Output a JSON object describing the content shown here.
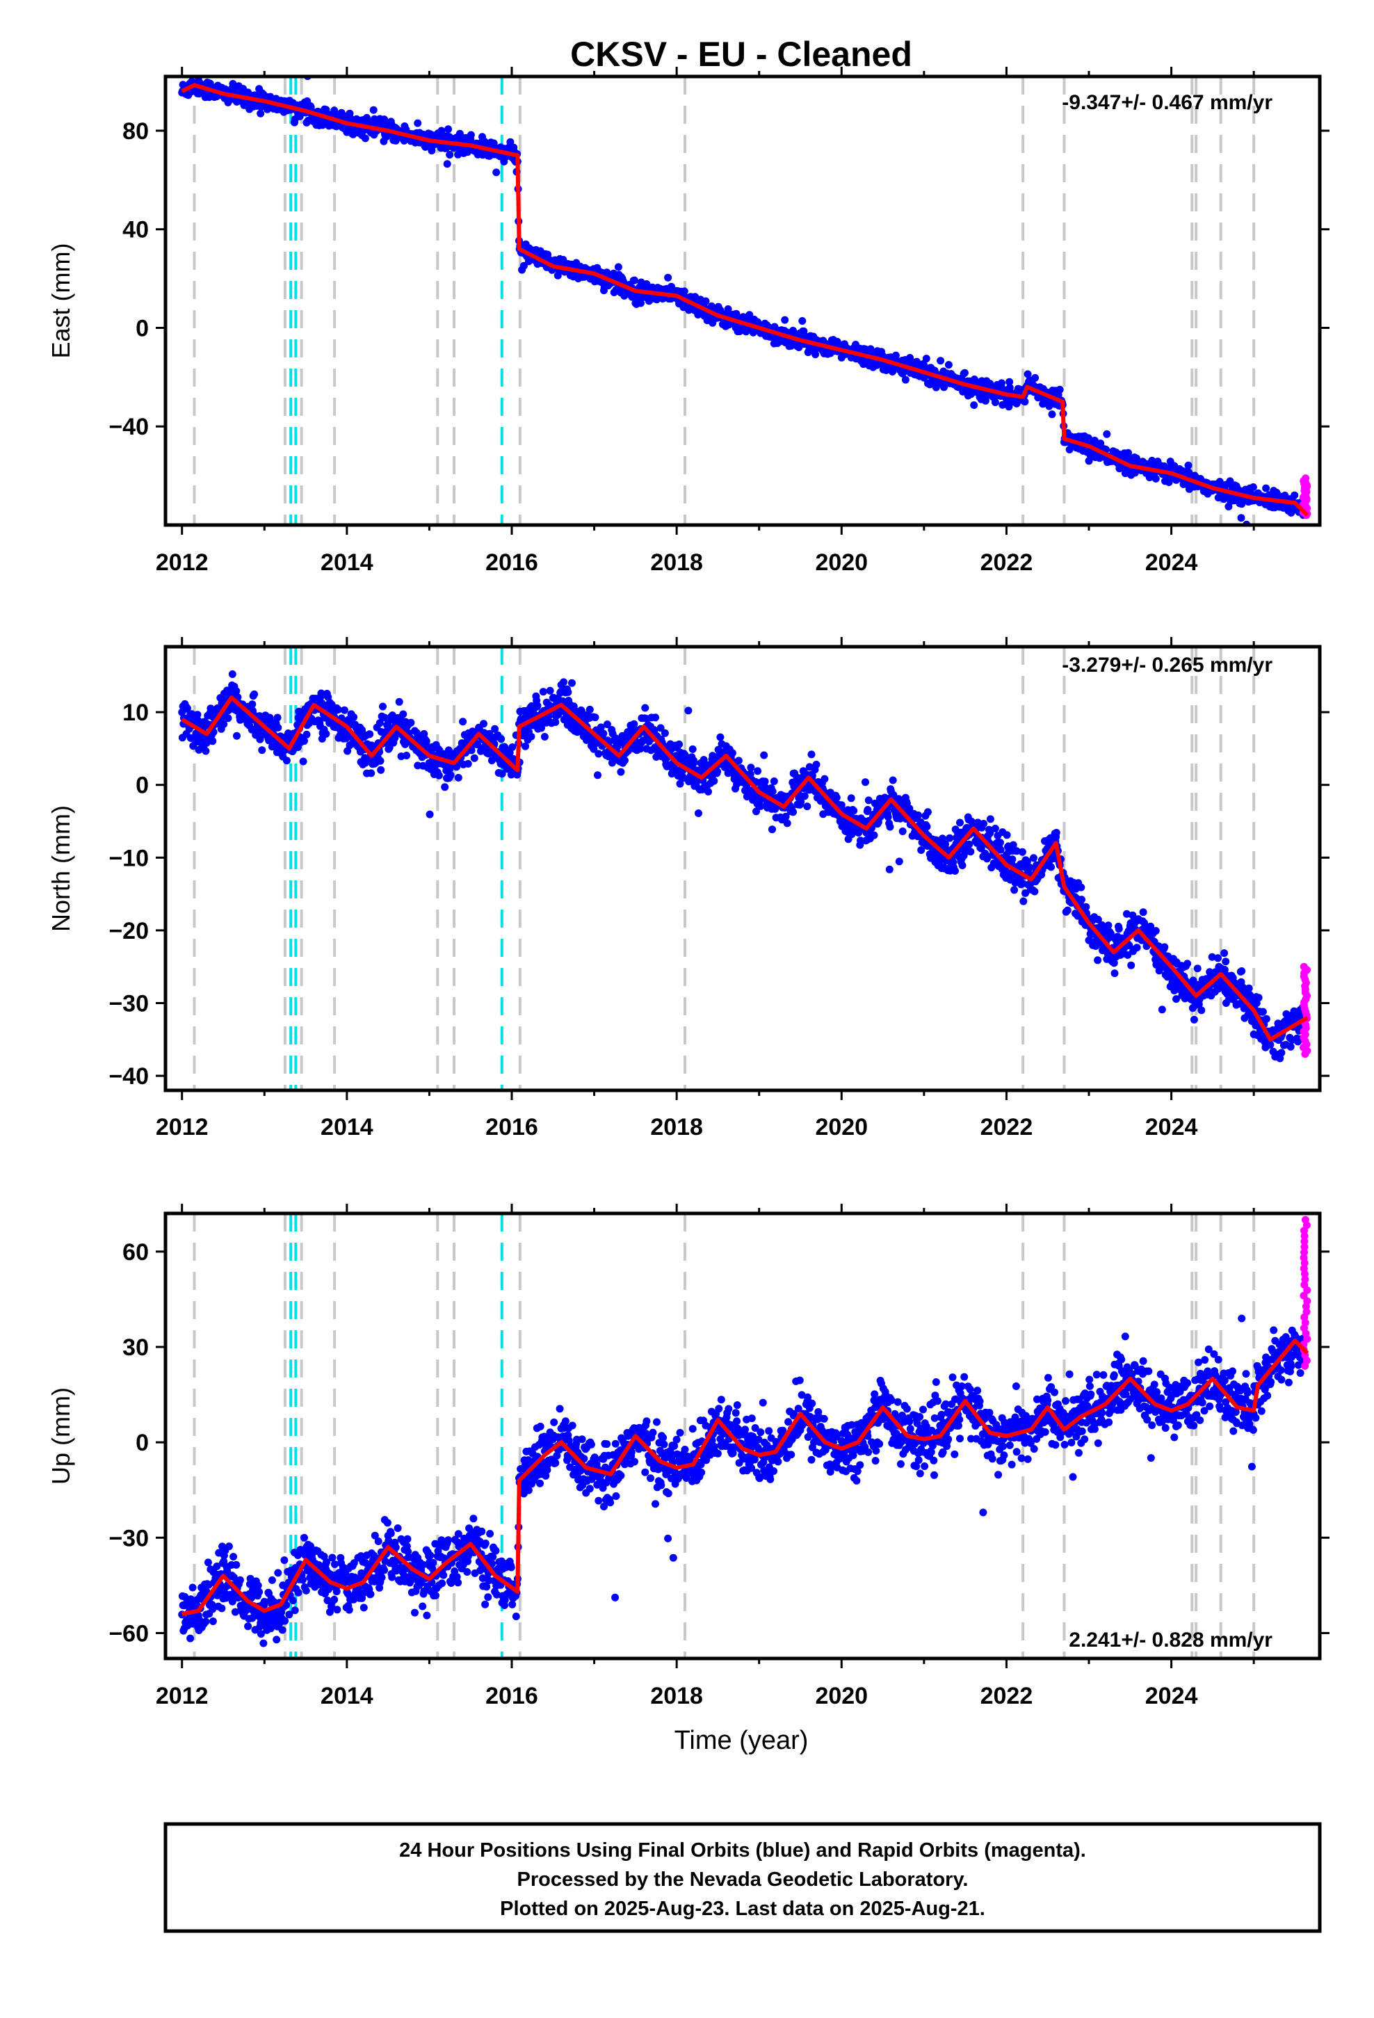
{
  "figure": {
    "title": "CKSV  - EU - Cleaned",
    "xlabel": "Time (year)",
    "footer": [
      "24 Hour Positions Using Final Orbits (blue) and Rapid Orbits (magenta).",
      "Processed by the Nevada Geodetic Laboratory.",
      "Plotted on 2025-Aug-23. Last data on 2025-Aug-21."
    ],
    "colors": {
      "final_orbits": "#0000ff",
      "rapid_orbits": "#ff00ff",
      "model": "#ff0000",
      "antenna_change": "#c8c8c8",
      "earthquake": "#00e0e0"
    }
  },
  "chart_data": [
    {
      "type": "scatter",
      "ylabel": "East (mm)",
      "rate_label": "-9.347+/- 0.467 mm/yr",
      "xlim": [
        2011.8,
        2025.8
      ],
      "ylim": [
        -80,
        102
      ],
      "xticks": [
        2012,
        2014,
        2016,
        2018,
        2020,
        2022,
        2024
      ],
      "yticks": [
        -40,
        0,
        40,
        80
      ],
      "rate": -9.347,
      "annual_amplitude": 0.7,
      "offsets": [
        {
          "x": 2016.08,
          "dy": -37
        },
        {
          "x": 2022.7,
          "dy": -15
        }
      ],
      "scatter_sigma": 1.8,
      "model_line": [
        [
          2012.0,
          96
        ],
        [
          2012.15,
          98.5
        ],
        [
          2012.5,
          95
        ],
        [
          2013.0,
          92
        ],
        [
          2013.5,
          88
        ],
        [
          2014.0,
          83
        ],
        [
          2014.5,
          80
        ],
        [
          2015.0,
          76
        ],
        [
          2015.5,
          74
        ],
        [
          2016.07,
          70
        ],
        [
          2016.09,
          32
        ],
        [
          2016.5,
          25
        ],
        [
          2017.0,
          22
        ],
        [
          2017.5,
          15
        ],
        [
          2018.0,
          13
        ],
        [
          2018.5,
          5
        ],
        [
          2019.0,
          0
        ],
        [
          2019.5,
          -5
        ],
        [
          2020.0,
          -9
        ],
        [
          2020.5,
          -13
        ],
        [
          2021.0,
          -18
        ],
        [
          2021.5,
          -23
        ],
        [
          2022.0,
          -27
        ],
        [
          2022.2,
          -28
        ],
        [
          2022.25,
          -24
        ],
        [
          2022.68,
          -30
        ],
        [
          2022.7,
          -45
        ],
        [
          2023.0,
          -48
        ],
        [
          2023.5,
          -56
        ],
        [
          2024.0,
          -59
        ],
        [
          2024.5,
          -65
        ],
        [
          2025.0,
          -69
        ],
        [
          2025.5,
          -71
        ],
        [
          2025.65,
          -76
        ]
      ],
      "rapid_range": [
        -76,
        -61
      ]
    },
    {
      "type": "scatter",
      "ylabel": "North (mm)",
      "rate_label": "-3.279+/- 0.265 mm/yr",
      "xlim": [
        2011.8,
        2025.8
      ],
      "ylim": [
        -42,
        19
      ],
      "xticks": [
        2012,
        2014,
        2016,
        2018,
        2020,
        2022,
        2024
      ],
      "yticks": [
        -40,
        -30,
        -20,
        -10,
        0,
        10
      ],
      "rate": -3.279,
      "annual_amplitude": 3.5,
      "offsets": [
        {
          "x": 2016.08,
          "dy": 6
        },
        {
          "x": 2022.7,
          "dy": -5
        }
      ],
      "scatter_sigma": 1.3,
      "model_line": [
        [
          2012.0,
          9
        ],
        [
          2012.3,
          7
        ],
        [
          2012.6,
          12
        ],
        [
          2013.0,
          8
        ],
        [
          2013.3,
          5
        ],
        [
          2013.6,
          11
        ],
        [
          2014.0,
          8
        ],
        [
          2014.3,
          4
        ],
        [
          2014.6,
          8
        ],
        [
          2015.0,
          4
        ],
        [
          2015.3,
          3
        ],
        [
          2015.6,
          7
        ],
        [
          2016.07,
          2
        ],
        [
          2016.09,
          8
        ],
        [
          2016.6,
          11
        ],
        [
          2017.0,
          7
        ],
        [
          2017.3,
          4
        ],
        [
          2017.6,
          8
        ],
        [
          2018.0,
          3
        ],
        [
          2018.3,
          1
        ],
        [
          2018.6,
          4
        ],
        [
          2019.0,
          -1
        ],
        [
          2019.3,
          -3
        ],
        [
          2019.6,
          1
        ],
        [
          2020.0,
          -4
        ],
        [
          2020.3,
          -6
        ],
        [
          2020.6,
          -2
        ],
        [
          2021.0,
          -7
        ],
        [
          2021.3,
          -10
        ],
        [
          2021.6,
          -6
        ],
        [
          2022.0,
          -11
        ],
        [
          2022.3,
          -13
        ],
        [
          2022.6,
          -8
        ],
        [
          2022.7,
          -14
        ],
        [
          2023.0,
          -19
        ],
        [
          2023.3,
          -23
        ],
        [
          2023.6,
          -20
        ],
        [
          2024.0,
          -25
        ],
        [
          2024.3,
          -29
        ],
        [
          2024.6,
          -26
        ],
        [
          2025.0,
          -31
        ],
        [
          2025.2,
          -35
        ],
        [
          2025.65,
          -32
        ]
      ],
      "rapid_range": [
        -37,
        -25
      ]
    },
    {
      "type": "scatter",
      "ylabel": "Up (mm)",
      "rate_label": "2.241+/- 0.828 mm/yr",
      "xlim": [
        2011.8,
        2025.8
      ],
      "ylim": [
        -68,
        72
      ],
      "xticks": [
        2012,
        2014,
        2016,
        2018,
        2020,
        2022,
        2024
      ],
      "yticks": [
        -60,
        -30,
        0,
        30,
        60
      ],
      "rate": 2.241,
      "annual_amplitude": 5.5,
      "offsets": [
        {
          "x": 2016.08,
          "dy": 34
        },
        {
          "x": 2022.7,
          "dy": 0
        }
      ],
      "scatter_sigma": 4.5,
      "model_line": [
        [
          2012.0,
          -54
        ],
        [
          2012.2,
          -53
        ],
        [
          2012.5,
          -42
        ],
        [
          2012.8,
          -50
        ],
        [
          2013.0,
          -53
        ],
        [
          2013.2,
          -51
        ],
        [
          2013.5,
          -37
        ],
        [
          2013.8,
          -44
        ],
        [
          2014.0,
          -46
        ],
        [
          2014.2,
          -44
        ],
        [
          2014.5,
          -33
        ],
        [
          2014.8,
          -40
        ],
        [
          2015.0,
          -43
        ],
        [
          2015.2,
          -38
        ],
        [
          2015.5,
          -32
        ],
        [
          2015.8,
          -42
        ],
        [
          2016.07,
          -47
        ],
        [
          2016.09,
          -12
        ],
        [
          2016.4,
          -4
        ],
        [
          2016.6,
          0
        ],
        [
          2016.9,
          -8
        ],
        [
          2017.2,
          -10
        ],
        [
          2017.5,
          2
        ],
        [
          2017.8,
          -6
        ],
        [
          2018.0,
          -8
        ],
        [
          2018.2,
          -7
        ],
        [
          2018.5,
          7
        ],
        [
          2018.8,
          -2
        ],
        [
          2019.0,
          -4
        ],
        [
          2019.2,
          -3
        ],
        [
          2019.5,
          9
        ],
        [
          2019.8,
          0
        ],
        [
          2020.0,
          -2
        ],
        [
          2020.2,
          0
        ],
        [
          2020.5,
          11
        ],
        [
          2020.8,
          2
        ],
        [
          2021.0,
          1
        ],
        [
          2021.2,
          2
        ],
        [
          2021.5,
          13
        ],
        [
          2021.8,
          3
        ],
        [
          2022.0,
          2
        ],
        [
          2022.3,
          4
        ],
        [
          2022.5,
          11
        ],
        [
          2022.7,
          4
        ],
        [
          2022.9,
          8
        ],
        [
          2023.2,
          12
        ],
        [
          2023.5,
          20
        ],
        [
          2023.8,
          12
        ],
        [
          2024.0,
          10
        ],
        [
          2024.2,
          12
        ],
        [
          2024.5,
          20
        ],
        [
          2024.8,
          11
        ],
        [
          2025.0,
          10
        ],
        [
          2025.05,
          18
        ],
        [
          2025.5,
          32
        ],
        [
          2025.65,
          28
        ]
      ],
      "rapid_range": [
        24,
        70
      ]
    }
  ],
  "events": {
    "antenna_change": [
      2012.15,
      2013.25,
      2013.45,
      2013.85,
      2015.1,
      2015.3,
      2016.1,
      2018.1,
      2022.2,
      2022.7,
      2024.25,
      2024.3,
      2024.6,
      2025.0
    ],
    "earthquake": [
      2013.32,
      2013.38,
      2015.88
    ]
  }
}
